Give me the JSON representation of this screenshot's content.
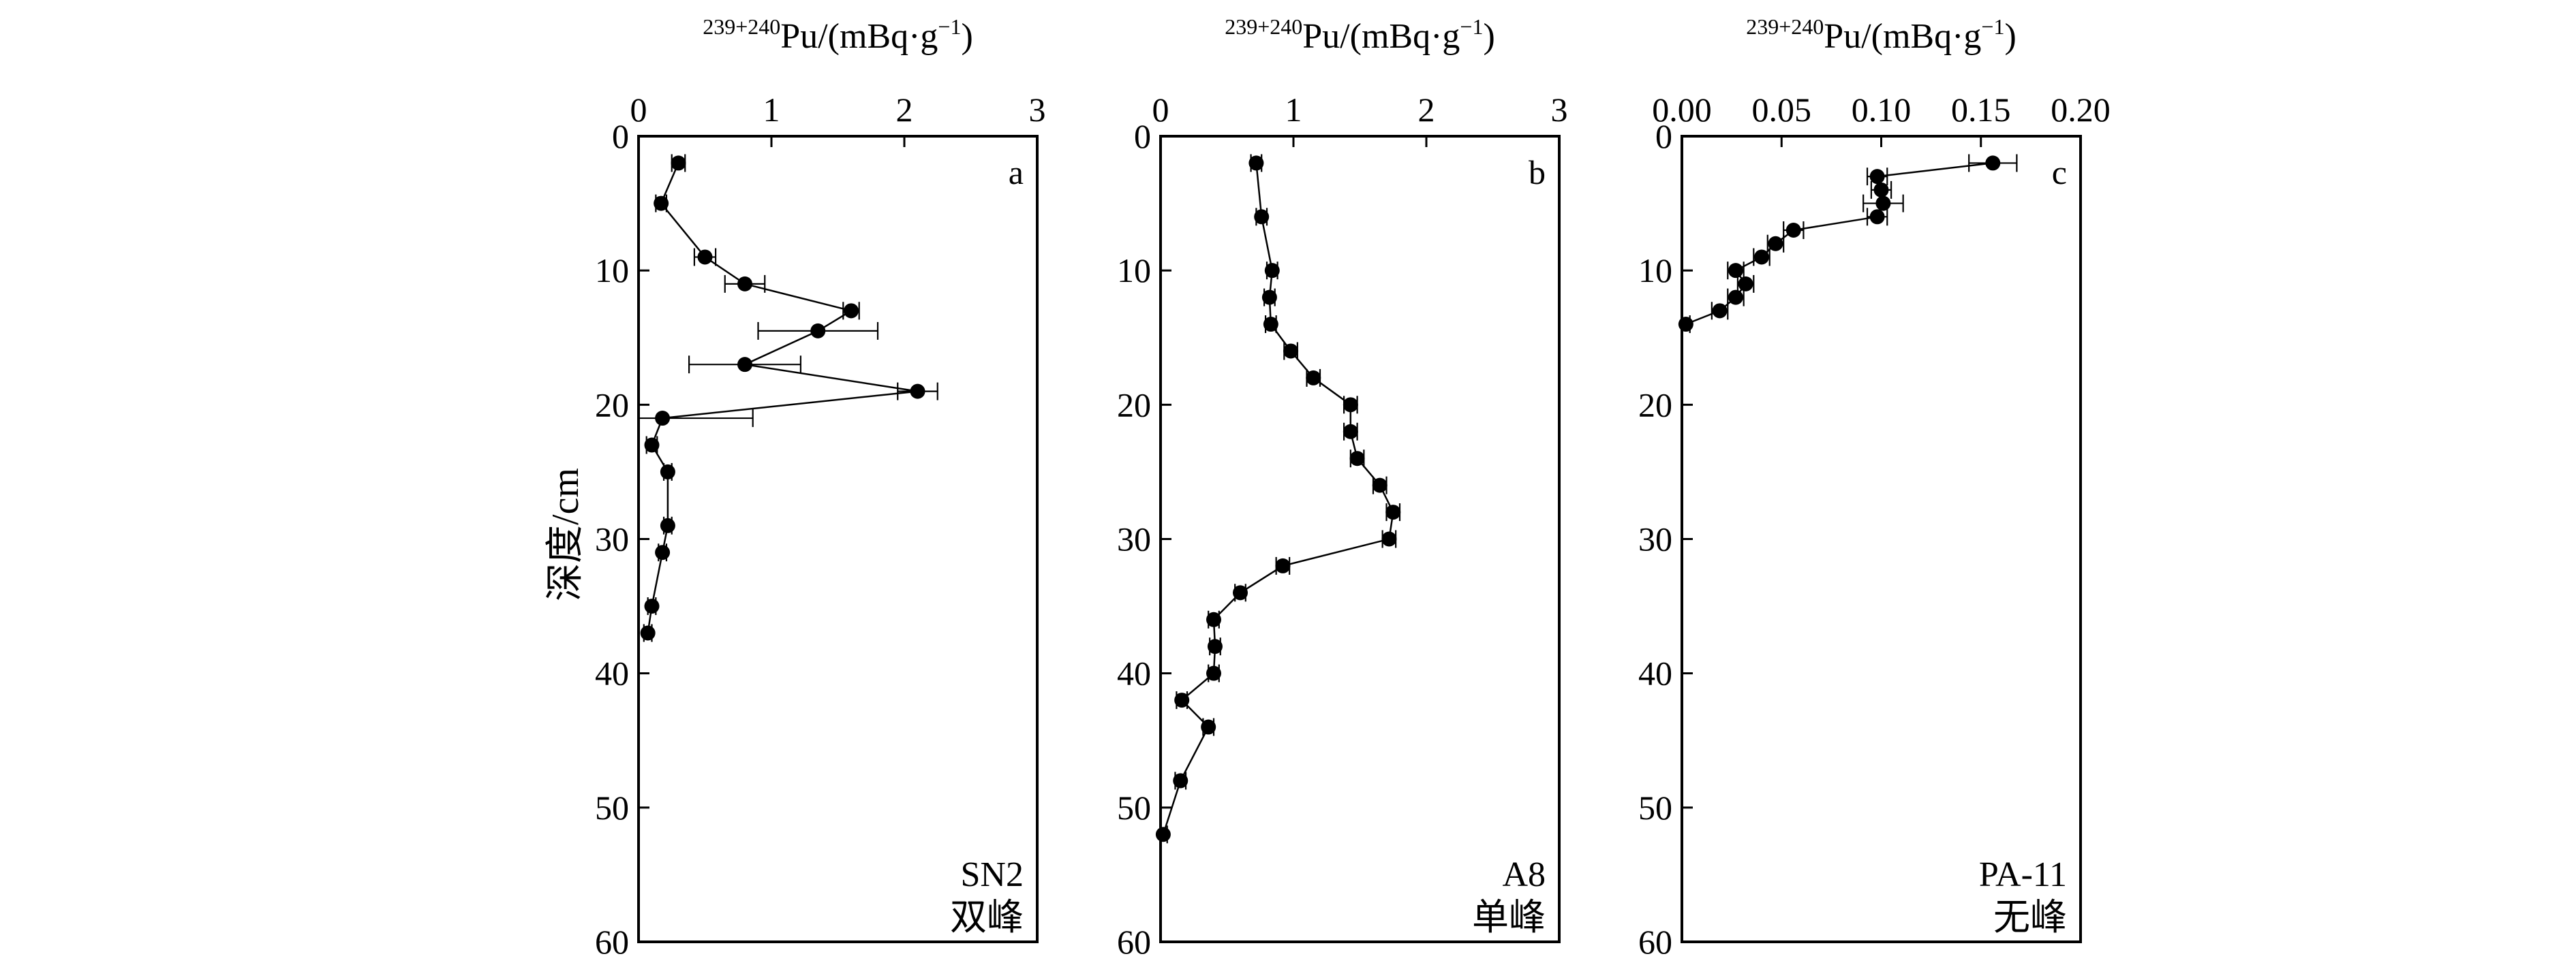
{
  "chart_data": {
    "y_axis_label": "深度/cm",
    "panels": [
      {
        "type": "scatter",
        "letter": "a",
        "site": "SN2",
        "peak": "双峰",
        "x_label": {
          "sup": "239+240",
          "text": "Pu/(mBq·g",
          "exp": "−1",
          "close": ")"
        },
        "xlim": [
          0,
          3
        ],
        "x_ticks": [
          0,
          1,
          2,
          3
        ],
        "x_tick_labels": [
          "0",
          "1",
          "2",
          "3"
        ],
        "ylim": [
          0,
          60
        ],
        "y_ticks": [
          0,
          10,
          20,
          30,
          40,
          50,
          60
        ],
        "y_tick_labels": [
          "0",
          "10",
          "20",
          "30",
          "40",
          "50",
          "60"
        ],
        "points": [
          {
            "depth": 2,
            "value": 0.3,
            "err": 0.05
          },
          {
            "depth": 5,
            "value": 0.17,
            "err": 0.04
          },
          {
            "depth": 9,
            "value": 0.5,
            "err": 0.08
          },
          {
            "depth": 11,
            "value": 0.8,
            "err": 0.15
          },
          {
            "depth": 13,
            "value": 1.6,
            "err": 0.06
          },
          {
            "depth": 14.5,
            "value": 1.35,
            "err": 0.45
          },
          {
            "depth": 17,
            "value": 0.8,
            "err": 0.42
          },
          {
            "depth": 19,
            "value": 2.1,
            "err": 0.15
          },
          {
            "depth": 21,
            "value": 0.18,
            "err": 0.68
          },
          {
            "depth": 23,
            "value": 0.1,
            "err": 0.04
          },
          {
            "depth": 25,
            "value": 0.22,
            "err": 0.03
          },
          {
            "depth": 29,
            "value": 0.22,
            "err": 0.03
          },
          {
            "depth": 31,
            "value": 0.18,
            "err": 0.03
          },
          {
            "depth": 35,
            "value": 0.1,
            "err": 0.03
          },
          {
            "depth": 37,
            "value": 0.07,
            "err": 0.03
          }
        ]
      },
      {
        "type": "scatter",
        "letter": "b",
        "site": "A8",
        "peak": "单峰",
        "x_label": {
          "sup": "239+240",
          "text": "Pu/(mBq·g",
          "exp": "−1",
          "close": ")"
        },
        "xlim": [
          0,
          3
        ],
        "x_ticks": [
          0,
          1,
          2,
          3
        ],
        "x_tick_labels": [
          "0",
          "1",
          "2",
          "3"
        ],
        "ylim": [
          0,
          60
        ],
        "y_ticks": [
          0,
          10,
          20,
          30,
          40,
          50,
          60
        ],
        "y_tick_labels": [
          "0",
          "10",
          "20",
          "30",
          "40",
          "50",
          "60"
        ],
        "points": [
          {
            "depth": 2,
            "value": 0.72,
            "err": 0.04
          },
          {
            "depth": 6,
            "value": 0.76,
            "err": 0.04
          },
          {
            "depth": 10,
            "value": 0.84,
            "err": 0.04
          },
          {
            "depth": 12,
            "value": 0.82,
            "err": 0.04
          },
          {
            "depth": 14,
            "value": 0.83,
            "err": 0.04
          },
          {
            "depth": 16,
            "value": 0.98,
            "err": 0.05
          },
          {
            "depth": 18,
            "value": 1.15,
            "err": 0.05
          },
          {
            "depth": 20,
            "value": 1.43,
            "err": 0.05
          },
          {
            "depth": 22,
            "value": 1.43,
            "err": 0.05
          },
          {
            "depth": 24,
            "value": 1.48,
            "err": 0.05
          },
          {
            "depth": 26,
            "value": 1.65,
            "err": 0.05
          },
          {
            "depth": 28,
            "value": 1.75,
            "err": 0.05
          },
          {
            "depth": 30,
            "value": 1.72,
            "err": 0.05
          },
          {
            "depth": 32,
            "value": 0.92,
            "err": 0.05
          },
          {
            "depth": 34,
            "value": 0.6,
            "err": 0.04
          },
          {
            "depth": 36,
            "value": 0.4,
            "err": 0.04
          },
          {
            "depth": 38,
            "value": 0.41,
            "err": 0.04
          },
          {
            "depth": 40,
            "value": 0.4,
            "err": 0.04
          },
          {
            "depth": 42,
            "value": 0.16,
            "err": 0.04
          },
          {
            "depth": 44,
            "value": 0.36,
            "err": 0.04
          },
          {
            "depth": 48,
            "value": 0.15,
            "err": 0.04
          },
          {
            "depth": 52,
            "value": 0.02,
            "err": 0.03
          }
        ]
      },
      {
        "type": "scatter",
        "letter": "c",
        "site": "PA-11",
        "peak": "无峰",
        "x_label": {
          "sup": "239+240",
          "text": "Pu/(mBq·g",
          "exp": "−1",
          "close": ")"
        },
        "xlim": [
          0,
          0.2
        ],
        "x_ticks": [
          0,
          0.05,
          0.1,
          0.15,
          0.2
        ],
        "x_tick_labels": [
          "0.00",
          "0.05",
          "0.10",
          "0.15",
          "0.20"
        ],
        "ylim": [
          0,
          60
        ],
        "y_ticks": [
          0,
          10,
          20,
          30,
          40,
          50,
          60
        ],
        "y_tick_labels": [
          "0",
          "10",
          "20",
          "30",
          "40",
          "50",
          "60"
        ],
        "points": [
          {
            "depth": 2,
            "value": 0.156,
            "err": 0.012
          },
          {
            "depth": 3,
            "value": 0.098,
            "err": 0.005
          },
          {
            "depth": 4,
            "value": 0.1,
            "err": 0.005
          },
          {
            "depth": 5,
            "value": 0.101,
            "err": 0.01
          },
          {
            "depth": 6,
            "value": 0.098,
            "err": 0.005
          },
          {
            "depth": 7,
            "value": 0.056,
            "err": 0.005
          },
          {
            "depth": 8,
            "value": 0.047,
            "err": 0.004
          },
          {
            "depth": 9,
            "value": 0.04,
            "err": 0.004
          },
          {
            "depth": 10,
            "value": 0.027,
            "err": 0.004
          },
          {
            "depth": 11,
            "value": 0.032,
            "err": 0.004
          },
          {
            "depth": 12,
            "value": 0.027,
            "err": 0.004
          },
          {
            "depth": 13,
            "value": 0.019,
            "err": 0.004
          },
          {
            "depth": 14,
            "value": 0.002,
            "err": 0.002
          }
        ]
      }
    ]
  }
}
